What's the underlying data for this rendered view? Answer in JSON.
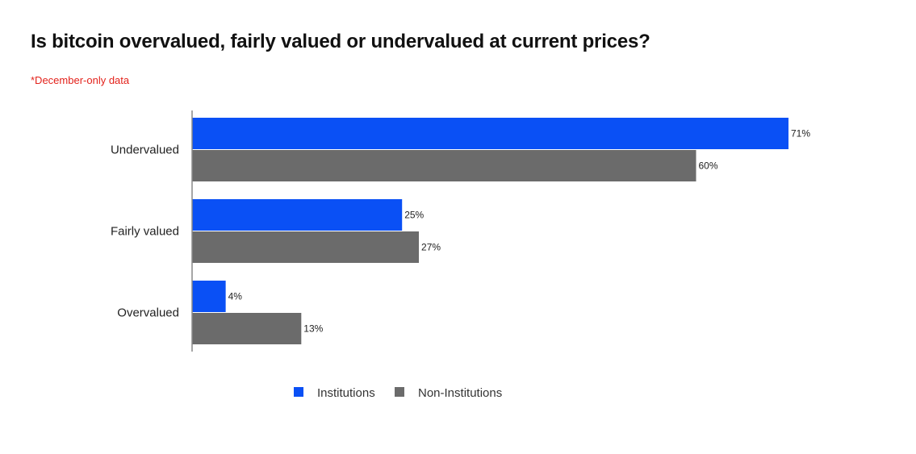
{
  "chart_data": {
    "type": "bar",
    "orientation": "horizontal",
    "title": "Is bitcoin overvalued, fairly valued or undervalued at current prices?",
    "subtitle": "*December-only data",
    "categories": [
      "Undervalued",
      "Fairly valued",
      "Overvalued"
    ],
    "series": [
      {
        "name": "Institutions",
        "values": [
          71,
          25,
          4
        ],
        "labels": [
          "71%",
          "25%",
          "4%"
        ],
        "color": "#0a50f5"
      },
      {
        "name": "Non-Institutions",
        "values": [
          60,
          27,
          13
        ],
        "labels": [
          "60%",
          "27%",
          "13%"
        ],
        "color": "#6b6b6b"
      }
    ],
    "value_unit": "%",
    "xlim": [
      0,
      71
    ],
    "grid": false,
    "legend_position": "bottom"
  },
  "colors": {
    "title": "#111111",
    "subtitle": "#e3221b",
    "axis": "#888888"
  }
}
